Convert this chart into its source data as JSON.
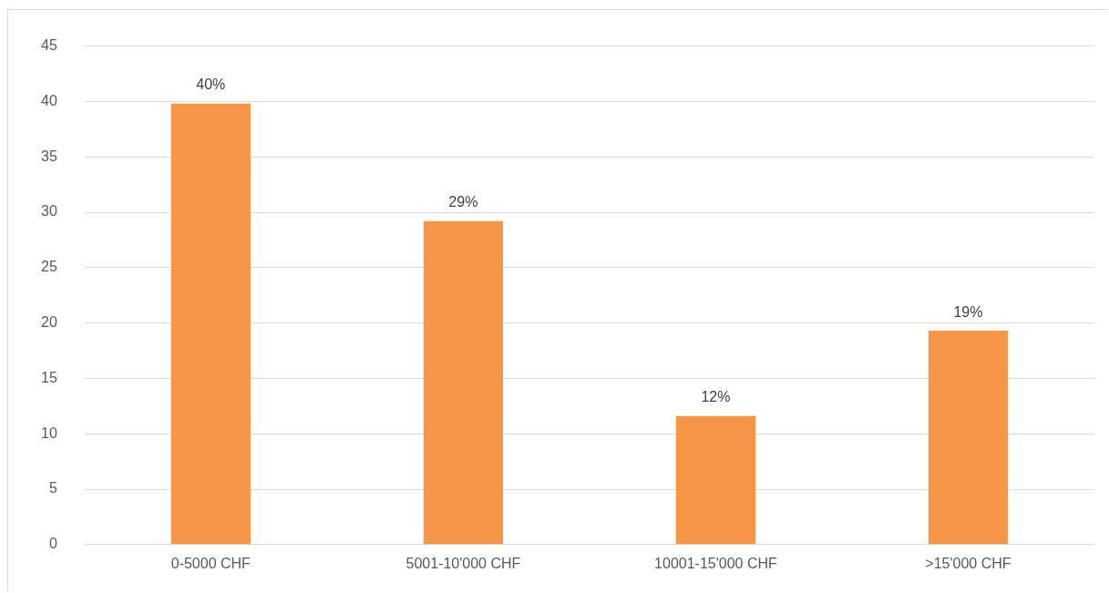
{
  "chart_data": {
    "type": "bar",
    "categories": [
      "0-5000 CHF",
      "5001-10'000 CHF",
      "10001-15'000 CHF",
      ">15'000 CHF"
    ],
    "values": [
      39.8,
      29.2,
      11.6,
      19.3
    ],
    "color": "#f79646",
    "value_labels": [
      "40%",
      "29%",
      "12%",
      "19%"
    ],
    "ylim": [
      0,
      45
    ],
    "yticks": [
      0,
      5,
      10,
      15,
      20,
      25,
      30,
      35,
      40,
      45
    ],
    "grid": "y",
    "legend": false
  }
}
